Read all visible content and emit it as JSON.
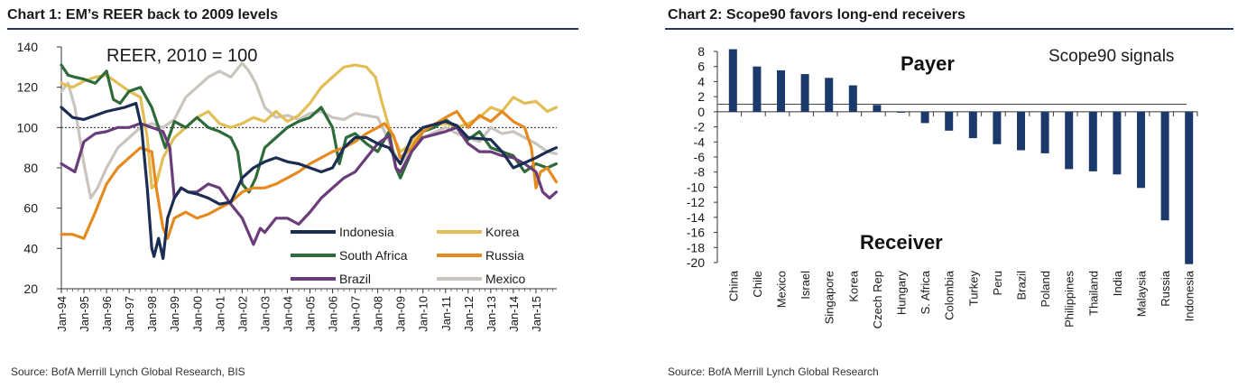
{
  "chart_data": [
    {
      "type": "line",
      "title": "Chart 1: EM’s REER  back to 2009 levels",
      "annotation": "REER, 2010 = 100",
      "source": "Source: BofA Merrill Lynch Global Research, BIS",
      "ylim": [
        20,
        140
      ],
      "yticks": [
        "20",
        "40",
        "60",
        "80",
        "100",
        "120",
        "140"
      ],
      "xlim": [
        1994.0,
        2015.92
      ],
      "xtick_labels": [
        "Jan-94",
        "Jan-95",
        "Jan-96",
        "Jan-97",
        "Jan-98",
        "Jan-99",
        "Jan-00",
        "Jan-01",
        "Jan-02",
        "Jan-03",
        "Jan-04",
        "Jan-05",
        "Jan-06",
        "Jan-07",
        "Jan-08",
        "Jan-09",
        "Jan-10",
        "Jan-11",
        "Jan-12",
        "Jan-13",
        "Jan-14",
        "Jan-15"
      ],
      "reference_line": 100,
      "legend_position": "lower-right",
      "series": [
        {
          "name": "Indonesia",
          "color": "#1b2d52",
          "x": [
            1994.0,
            1994.5,
            1995.0,
            1996.0,
            1996.8,
            1997.3,
            1997.55,
            1997.8,
            1998.0,
            1998.1,
            1998.3,
            1998.5,
            1998.7,
            1999.0,
            1999.3,
            1999.6,
            2000.0,
            2000.5,
            2001.0,
            2001.5,
            2002.0,
            2002.5,
            2003.0,
            2003.5,
            2004.0,
            2004.5,
            2005.0,
            2005.5,
            2006.0,
            2006.5,
            2007.0,
            2007.5,
            2008.0,
            2008.5,
            2008.8,
            2009.0,
            2009.5,
            2010.0,
            2011.0,
            2011.5,
            2012.0,
            2013.0,
            2013.5,
            2014.0,
            2015.0,
            2015.5,
            2015.9
          ],
          "y": [
            110,
            105,
            104,
            108,
            110,
            112,
            100,
            70,
            40,
            36,
            45,
            35,
            55,
            65,
            70,
            68,
            67,
            65,
            62,
            63,
            75,
            80,
            83,
            85,
            83,
            82,
            80,
            78,
            80,
            90,
            95,
            95,
            92,
            90,
            85,
            82,
            95,
            100,
            103,
            101,
            95,
            94,
            88,
            80,
            85,
            88,
            90
          ]
        },
        {
          "name": "Korea",
          "color": "#e3bd55",
          "x": [
            1994.0,
            1994.5,
            1995.0,
            1995.5,
            1996.0,
            1996.5,
            1997.0,
            1997.5,
            1997.8,
            1998.0,
            1998.2,
            1998.5,
            1999.0,
            1999.5,
            2000.0,
            2000.5,
            2001.0,
            2001.5,
            2002.0,
            2002.5,
            2003.0,
            2003.5,
            2004.0,
            2004.5,
            2005.0,
            2005.5,
            2006.0,
            2006.5,
            2007.0,
            2007.5,
            2007.9,
            2008.2,
            2008.5,
            2009.0,
            2009.5,
            2010.0,
            2011.0,
            2011.5,
            2012.0,
            2012.5,
            2013.0,
            2013.5,
            2014.0,
            2014.5,
            2015.0,
            2015.5,
            2015.9
          ],
          "y": [
            122,
            120,
            123,
            125,
            126,
            122,
            118,
            115,
            95,
            70,
            72,
            85,
            95,
            100,
            105,
            108,
            102,
            100,
            102,
            105,
            103,
            108,
            103,
            106,
            112,
            120,
            125,
            130,
            131,
            130,
            125,
            112,
            100,
            88,
            92,
            100,
            102,
            100,
            102,
            105,
            110,
            108,
            115,
            112,
            113,
            108,
            110
          ]
        },
        {
          "name": "South Africa",
          "color": "#2e6b3a",
          "x": [
            1994.0,
            1994.3,
            1994.6,
            1995.0,
            1995.5,
            1996.0,
            1996.3,
            1996.6,
            1997.0,
            1997.5,
            1998.0,
            1998.3,
            1998.6,
            1999.0,
            1999.5,
            2000.0,
            2000.5,
            2001.0,
            2001.5,
            2001.8,
            2002.0,
            2002.3,
            2002.6,
            2003.0,
            2003.5,
            2004.0,
            2004.5,
            2005.0,
            2005.5,
            2006.0,
            2006.3,
            2006.6,
            2007.0,
            2007.5,
            2008.0,
            2008.5,
            2008.8,
            2009.0,
            2009.5,
            2010.0,
            2010.5,
            2011.0,
            2011.5,
            2012.0,
            2012.5,
            2013.0,
            2013.5,
            2014.0,
            2014.5,
            2015.0,
            2015.5,
            2015.9
          ],
          "y": [
            131,
            126,
            125,
            124,
            122,
            128,
            114,
            112,
            118,
            120,
            110,
            100,
            90,
            103,
            100,
            105,
            100,
            98,
            95,
            88,
            72,
            68,
            75,
            90,
            95,
            100,
            103,
            105,
            110,
            100,
            82,
            95,
            97,
            92,
            88,
            98,
            80,
            75,
            88,
            98,
            100,
            104,
            100,
            94,
            98,
            90,
            88,
            86,
            78,
            82,
            80,
            82
          ]
        },
        {
          "name": "Russia",
          "color": "#e58a1f",
          "x": [
            1994.0,
            1994.5,
            1995.0,
            1995.5,
            1996.0,
            1996.5,
            1997.0,
            1997.5,
            1998.0,
            1998.2,
            1998.5,
            1998.7,
            1999.0,
            1999.5,
            2000.0,
            2000.5,
            2001.0,
            2001.5,
            2002.0,
            2002.5,
            2003.0,
            2003.5,
            2004.0,
            2004.5,
            2005.0,
            2005.5,
            2006.0,
            2006.5,
            2007.0,
            2007.5,
            2008.0,
            2008.3,
            2008.7,
            2009.0,
            2009.5,
            2010.0,
            2011.0,
            2011.5,
            2012.0,
            2012.5,
            2013.0,
            2013.5,
            2014.0,
            2014.5,
            2014.8,
            2015.0,
            2015.2,
            2015.5,
            2015.9
          ],
          "y": [
            47,
            47,
            45,
            58,
            72,
            80,
            85,
            90,
            88,
            70,
            50,
            45,
            55,
            58,
            55,
            57,
            60,
            63,
            68,
            70,
            70,
            72,
            75,
            78,
            82,
            85,
            88,
            90,
            93,
            97,
            100,
            102,
            96,
            85,
            90,
            98,
            105,
            108,
            100,
            106,
            103,
            108,
            103,
            100,
            90,
            70,
            78,
            80,
            73
          ]
        },
        {
          "name": "Brazil",
          "color": "#6a3d7a",
          "x": [
            1994.0,
            1994.3,
            1994.6,
            1995.0,
            1995.5,
            1996.0,
            1996.5,
            1997.0,
            1997.5,
            1998.0,
            1998.5,
            1998.8,
            1999.0,
            1999.3,
            1999.6,
            2000.0,
            2000.5,
            2001.0,
            2001.5,
            2002.0,
            2002.5,
            2002.8,
            2003.0,
            2003.5,
            2004.0,
            2004.5,
            2005.0,
            2005.5,
            2006.0,
            2006.5,
            2007.0,
            2007.5,
            2008.0,
            2008.5,
            2008.8,
            2009.0,
            2009.5,
            2010.0,
            2011.0,
            2011.5,
            2012.0,
            2012.5,
            2013.0,
            2013.5,
            2014.0,
            2014.5,
            2015.0,
            2015.3,
            2015.6,
            2015.9
          ],
          "y": [
            82,
            80,
            78,
            93,
            97,
            98,
            100,
            100,
            102,
            100,
            98,
            90,
            65,
            70,
            68,
            68,
            72,
            70,
            62,
            55,
            42,
            50,
            48,
            55,
            55,
            52,
            58,
            65,
            70,
            75,
            78,
            85,
            92,
            96,
            80,
            78,
            88,
            95,
            98,
            100,
            92,
            88,
            88,
            86,
            85,
            82,
            78,
            68,
            65,
            68
          ]
        },
        {
          "name": "Mexico",
          "color": "#c9c4bd",
          "x": [
            1994.0,
            1994.3,
            1994.6,
            1995.0,
            1995.3,
            1995.6,
            1996.0,
            1996.5,
            1997.0,
            1997.5,
            1998.0,
            1998.5,
            1999.0,
            1999.5,
            2000.0,
            2000.5,
            2001.0,
            2001.5,
            2002.0,
            2002.3,
            2002.6,
            2003.0,
            2003.5,
            2004.0,
            2004.5,
            2005.0,
            2005.5,
            2006.0,
            2006.5,
            2007.0,
            2007.5,
            2008.0,
            2008.3,
            2008.7,
            2009.0,
            2009.5,
            2010.0,
            2011.0,
            2011.5,
            2012.0,
            2012.5,
            2013.0,
            2013.5,
            2014.0,
            2014.5,
            2015.0,
            2015.5,
            2015.9
          ],
          "y": [
            118,
            122,
            110,
            82,
            65,
            70,
            80,
            90,
            95,
            100,
            102,
            100,
            104,
            115,
            120,
            125,
            128,
            125,
            132,
            128,
            122,
            110,
            105,
            106,
            104,
            107,
            108,
            105,
            104,
            107,
            106,
            105,
            98,
            88,
            82,
            90,
            95,
            100,
            97,
            95,
            93,
            100,
            97,
            98,
            95,
            92,
            88,
            87
          ]
        }
      ]
    },
    {
      "type": "bar",
      "title": "Chart 2: Scope90  favors long-end receivers",
      "annotation": "Scope90 signals",
      "label_top": "Payer",
      "label_bottom": "Receiver",
      "source": "Source: BofA Merrill Lynch Global Research",
      "ylim": [
        -20,
        8
      ],
      "yticks": [
        "8",
        "6",
        "4",
        "2",
        "0",
        "-2",
        "-4",
        "-6",
        "-8",
        "-10",
        "-12",
        "-14",
        "-16",
        "-18",
        "-20"
      ],
      "color": "#1b3a6b",
      "reference_line": 1,
      "categories": [
        "China",
        "Chile",
        "Mexico",
        "Israel",
        "Singapore",
        "Korea",
        "Czech Rep",
        "Hungary",
        "S. Africa",
        "Colombia",
        "Turkey",
        "Peru",
        "Brazil",
        "Poland",
        "Philippines",
        "Thailand",
        "India",
        "Malaysia",
        "Russia",
        "Indonesia"
      ],
      "values": [
        8.3,
        6.0,
        5.5,
        5.0,
        4.5,
        3.5,
        0.9,
        -0.1,
        -1.5,
        -2.5,
        -3.5,
        -4.3,
        -5.1,
        -5.5,
        -7.6,
        -7.9,
        -8.3,
        -10.1,
        -14.4,
        -20.2
      ]
    }
  ]
}
